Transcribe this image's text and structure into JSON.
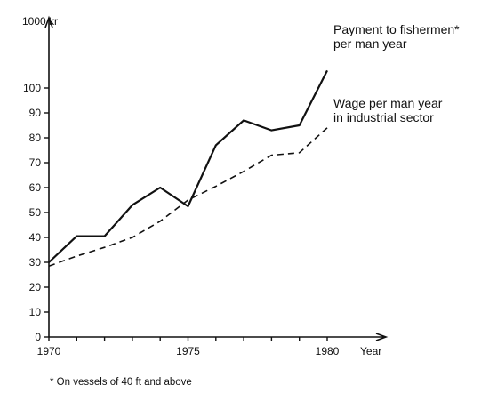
{
  "chart_data": {
    "type": "line",
    "ylabel": "1000 kr",
    "xlabel": "Year",
    "xlim": [
      1970,
      1980
    ],
    "ylim": [
      0,
      110
    ],
    "xticks": [
      1970,
      1975,
      1980
    ],
    "yticks": [
      0,
      10,
      20,
      30,
      40,
      50,
      60,
      70,
      80,
      90,
      100
    ],
    "grid": false,
    "series": [
      {
        "labels": [
          "Payment to fishermen*",
          "per man year"
        ],
        "style": "solid",
        "x": [
          1970,
          1971,
          1972,
          1973,
          1974,
          1975,
          1976,
          1977,
          1978,
          1979,
          1980
        ],
        "y": [
          30,
          40.5,
          40.5,
          53,
          60,
          52.5,
          77,
          87,
          83,
          85,
          107
        ]
      },
      {
        "labels": [
          "Wage per man year",
          "in industrial sector"
        ],
        "style": "dashed",
        "x": [
          1970,
          1971,
          1972,
          1973,
          1974,
          1975,
          1976,
          1977,
          1978,
          1979,
          1980
        ],
        "y": [
          28.5,
          32.5,
          36,
          40,
          46.5,
          55,
          60.5,
          66.5,
          73,
          74,
          84
        ]
      }
    ],
    "footnote": "* On vessels of 40 ft and above"
  }
}
